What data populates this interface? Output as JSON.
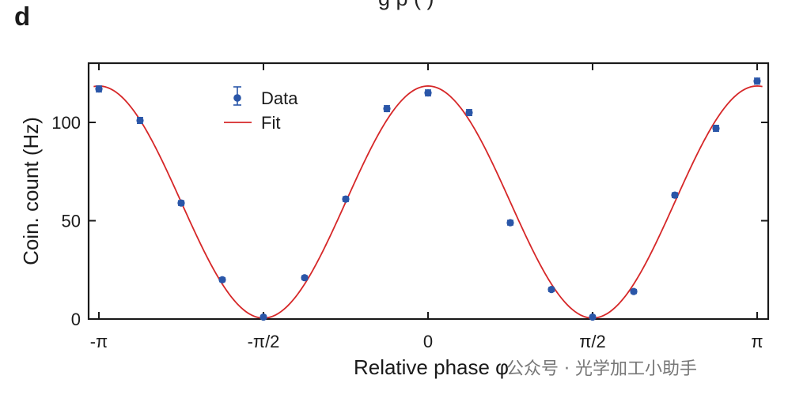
{
  "panel_label": "d",
  "cut_title_fragment": "g   p (   )",
  "watermark": "公众号 · 光学加工小助手",
  "colors": {
    "data": "#2a56a8",
    "fit": "#d62728",
    "axis": "#1a1a1a",
    "watermark": "#8a8a8a"
  },
  "chart_data": {
    "type": "scatter",
    "xlabel": "Relative phase φ",
    "ylabel": "Coin. count (Hz)",
    "xlim": [
      -3.1416,
      3.1416
    ],
    "ylim": [
      0,
      130
    ],
    "x_ticks": [
      {
        "value": -3.1416,
        "label": "-π"
      },
      {
        "value": -1.5708,
        "label": "-π/2"
      },
      {
        "value": 0,
        "label": "0"
      },
      {
        "value": 1.5708,
        "label": "π/2"
      },
      {
        "value": 3.1416,
        "label": "π"
      }
    ],
    "y_ticks": [
      {
        "value": 0,
        "label": "0"
      },
      {
        "value": 50,
        "label": "50"
      },
      {
        "value": 100,
        "label": "100"
      }
    ],
    "legend": {
      "position": "top-left",
      "entries": [
        "Data",
        "Fit"
      ]
    },
    "series": [
      {
        "name": "Data",
        "kind": "points-with-errorbars",
        "x": [
          -3.1416,
          -2.7489,
          -2.3562,
          -1.9635,
          -1.5708,
          -1.1781,
          -0.7854,
          -0.3927,
          0,
          0.3927,
          0.7854,
          1.1781,
          1.5708,
          1.9635,
          2.3562,
          2.7489,
          3.1416
        ],
        "y": [
          117,
          101,
          59,
          20,
          1,
          21,
          61,
          107,
          115,
          105,
          49,
          15,
          1,
          14,
          63,
          97,
          121
        ],
        "yerr": [
          1.5,
          1.5,
          1.2,
          1,
          0.8,
          1,
          1.2,
          1.5,
          1.5,
          1.5,
          1.2,
          1,
          0.8,
          1,
          1.2,
          1.5,
          1.5
        ]
      },
      {
        "name": "Fit",
        "kind": "line",
        "model": {
          "offset": 59.5,
          "amplitude": 59.0,
          "frequency": 2
        }
      }
    ]
  }
}
